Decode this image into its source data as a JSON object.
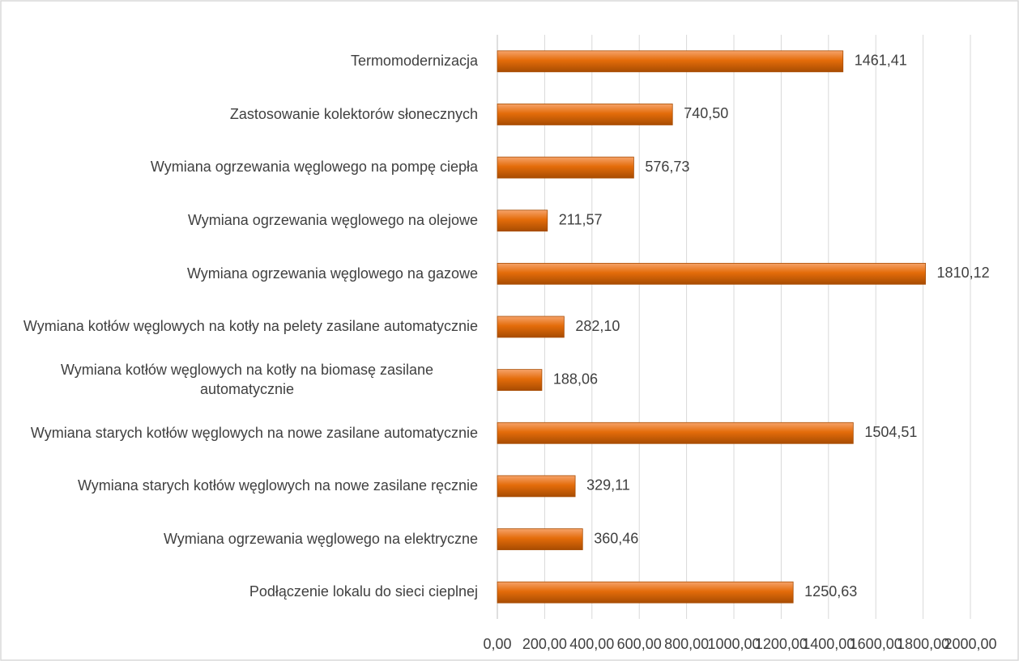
{
  "chart_data": {
    "type": "bar",
    "orientation": "horizontal",
    "categories": [
      "Termomodernizacja",
      "Zastosowanie kolektorów słonecznych",
      "Wymiana ogrzewania węglowego na pompę ciepła",
      "Wymiana ogrzewania węglowego na olejowe",
      "Wymiana ogrzewania węglowego na gazowe",
      "Wymiana kotłów węglowych na kotły na pelety zasilane automatycznie",
      "Wymiana kotłów węglowych na kotły na biomasę zasilane automatycznie",
      "Wymiana starych kotłów węglowych na nowe zasilane automatycznie",
      "Wymiana starych kotłów węglowych na nowe zasilane ręcznie",
      "Wymiana ogrzewania węglowego na elektryczne",
      "Podłączenie lokalu do sieci cieplnej"
    ],
    "values": [
      1461.41,
      740.5,
      576.73,
      211.57,
      1810.12,
      282.1,
      188.06,
      1504.51,
      329.11,
      360.46,
      1250.63
    ],
    "value_labels": [
      "1461,41",
      "740,50",
      "576,73",
      "211,57",
      "1810,12",
      "282,10",
      "188,06",
      "1504,51",
      "329,11",
      "360,46",
      "1250,63"
    ],
    "color": "#e46c0a",
    "xlim": [
      0,
      2000
    ],
    "xticks": [
      {
        "value": 0,
        "label": "0,00"
      },
      {
        "value": 200,
        "label": "200,00"
      },
      {
        "value": 400,
        "label": "400,00"
      },
      {
        "value": 600,
        "label": "600,00"
      },
      {
        "value": 800,
        "label": "800,00"
      },
      {
        "value": 1000,
        "label": "1000,00"
      },
      {
        "value": 1200,
        "label": "1200,00"
      },
      {
        "value": 1400,
        "label": "1400,00"
      },
      {
        "value": 1600,
        "label": "1600,00"
      },
      {
        "value": 1800,
        "label": "1800,00"
      },
      {
        "value": 2000,
        "label": "2000,00"
      }
    ],
    "grid": true
  }
}
